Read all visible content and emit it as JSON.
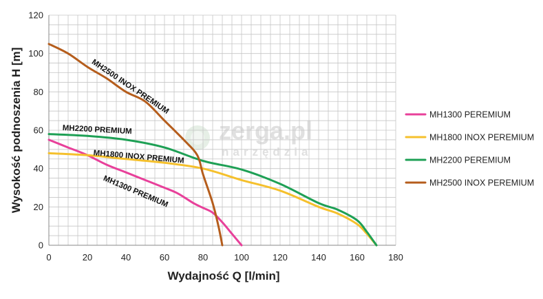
{
  "chart_data": {
    "type": "line",
    "title": "",
    "xlabel": "Wydajność Q [l/min]",
    "ylabel": "Wysokość podnoszenia H [m]",
    "xlim": [
      0,
      180
    ],
    "ylim": [
      0,
      120
    ],
    "x_ticks": [
      0,
      20,
      40,
      60,
      80,
      100,
      120,
      140,
      160,
      180
    ],
    "y_ticks": [
      0,
      20,
      40,
      60,
      80,
      100,
      120
    ],
    "grid": true,
    "legend_position": "right",
    "series": [
      {
        "name": "MH1300 PEREMIUM",
        "curve_label": "MH1300 PREMIUM",
        "color": "#e8409a",
        "points": [
          [
            0,
            55
          ],
          [
            10,
            51
          ],
          [
            20,
            47
          ],
          [
            30,
            42
          ],
          [
            40,
            38
          ],
          [
            50,
            34
          ],
          [
            60,
            30
          ],
          [
            67,
            27
          ],
          [
            75,
            22
          ],
          [
            80,
            19.5
          ],
          [
            85,
            17
          ],
          [
            90,
            12
          ],
          [
            95,
            6
          ],
          [
            100,
            0
          ]
        ]
      },
      {
        "name": "MH1800 INOX PEREMIUM",
        "curve_label": "MH1800 INOX PREMIUM",
        "color": "#f5c02c",
        "points": [
          [
            0,
            48
          ],
          [
            20,
            47
          ],
          [
            40,
            45
          ],
          [
            60,
            43
          ],
          [
            80,
            40
          ],
          [
            100,
            34
          ],
          [
            120,
            28.5
          ],
          [
            140,
            20
          ],
          [
            150,
            16.5
          ],
          [
            160,
            11
          ],
          [
            165,
            6
          ],
          [
            170,
            0
          ]
        ]
      },
      {
        "name": "MH2200 PEREMIUM",
        "curve_label": "MH2200 PREMIUM",
        "color": "#1ea055",
        "points": [
          [
            0,
            58
          ],
          [
            20,
            57
          ],
          [
            40,
            55
          ],
          [
            60,
            51
          ],
          [
            80,
            44
          ],
          [
            100,
            39.5
          ],
          [
            120,
            32
          ],
          [
            140,
            22
          ],
          [
            150,
            18.5
          ],
          [
            160,
            13
          ],
          [
            165,
            7
          ],
          [
            170,
            0
          ]
        ]
      },
      {
        "name": "MH2500 INOX PEREMIUM",
        "curve_label": "MH2500 INOX PREMIUM",
        "color": "#b55d1c",
        "points": [
          [
            0,
            105
          ],
          [
            10,
            100
          ],
          [
            20,
            93
          ],
          [
            30,
            87
          ],
          [
            40,
            80
          ],
          [
            50,
            75
          ],
          [
            60,
            65
          ],
          [
            70,
            55
          ],
          [
            77,
            47
          ],
          [
            80,
            37
          ],
          [
            85,
            22
          ],
          [
            88,
            10
          ],
          [
            90,
            0
          ]
        ]
      }
    ]
  },
  "watermark": {
    "main": "zerga.pl",
    "sub": "narzędzia"
  }
}
